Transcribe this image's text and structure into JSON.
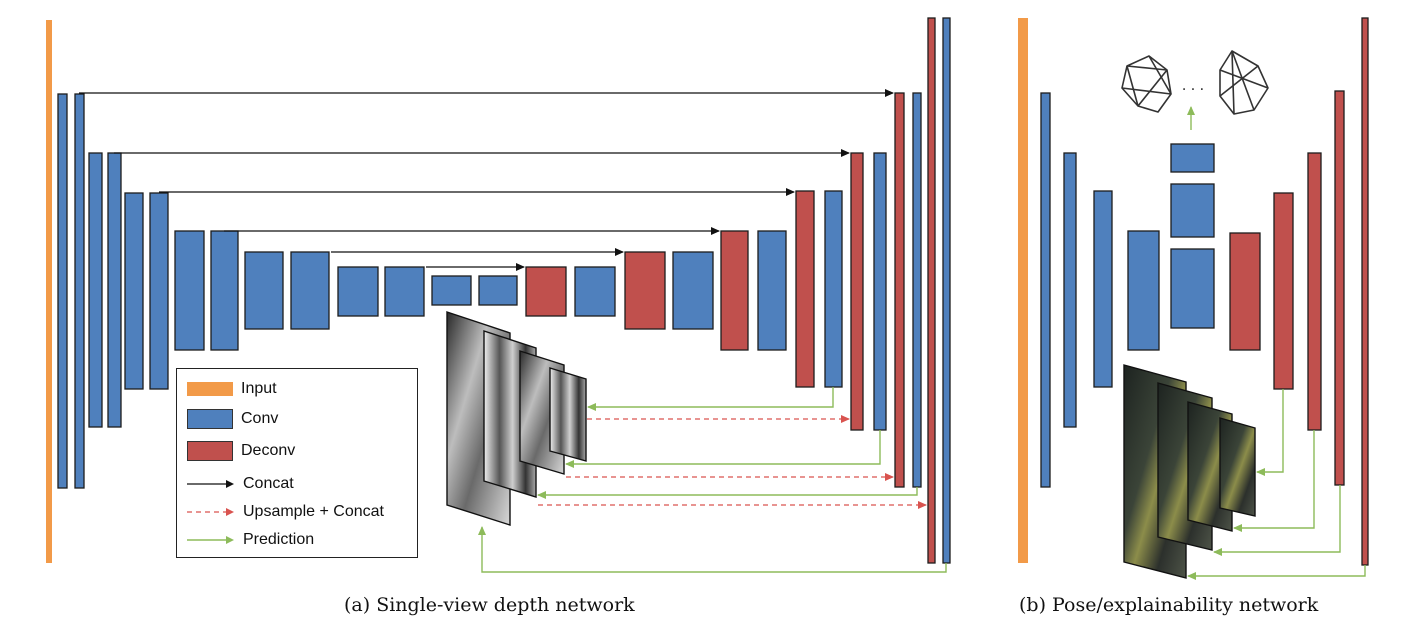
{
  "colors": {
    "input": "#f29a48",
    "conv": "#4f80bd",
    "deconv": "#c0504d",
    "concat": "#111111",
    "upsample_concat": "#d9534f",
    "prediction": "#8dbb5a"
  },
  "legend": {
    "input": "Input",
    "conv": "Conv",
    "deconv": "Deconv",
    "concat": "Concat",
    "upsample_concat": "Upsample + Concat",
    "prediction": "Prediction"
  },
  "captions": {
    "a": "(a) Single-view depth network",
    "b": "(b) Pose/explainability network"
  },
  "pose_output_dots": ". . ."
}
